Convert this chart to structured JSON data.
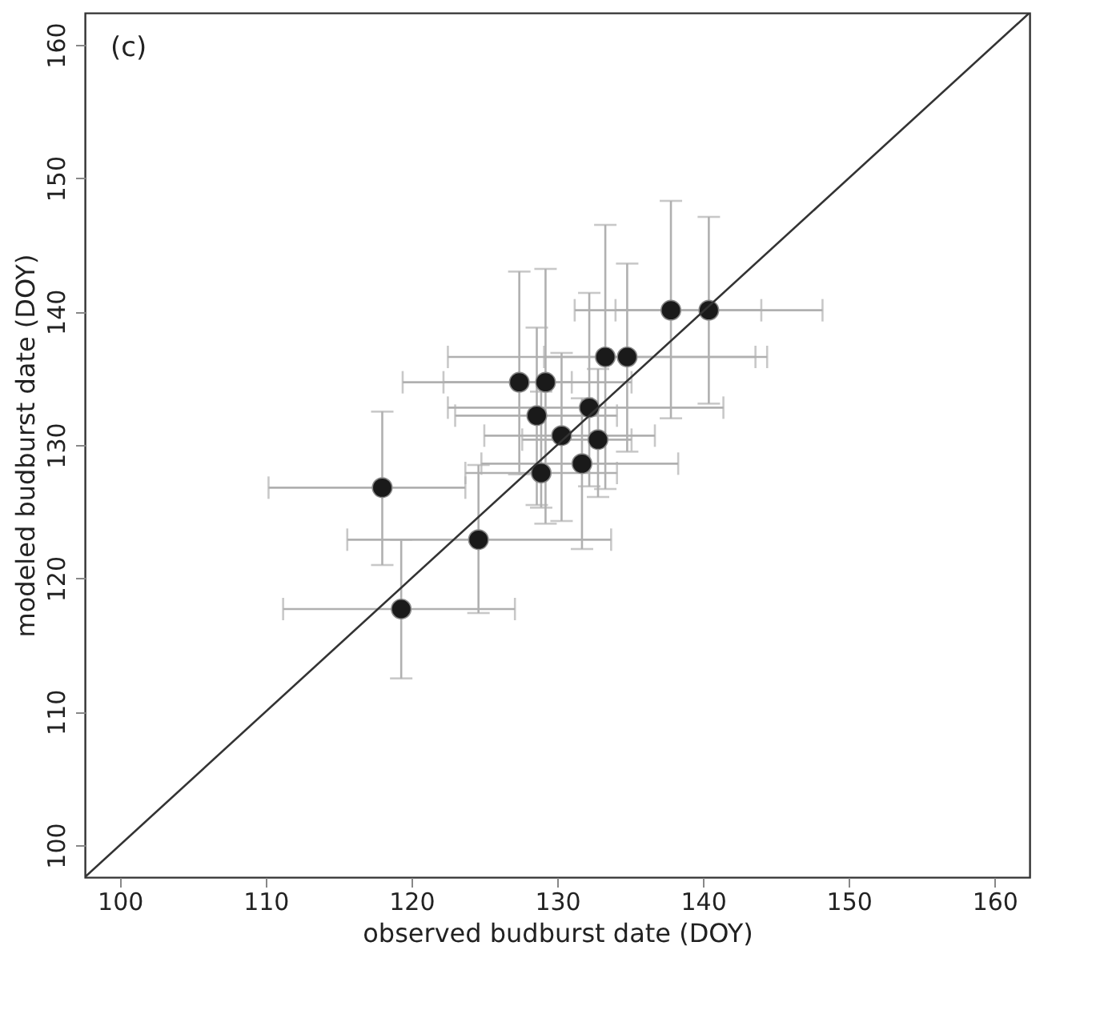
{
  "chart_data": {
    "type": "scatter",
    "xlabel": "observed budburst date (DOY)",
    "ylabel": "modeled budburst date (DOY)",
    "annotations": [
      "(c)"
    ],
    "xlim": [
      97.6,
      162.4
    ],
    "ylim": [
      97.6,
      162.4
    ],
    "xticks": [
      100,
      110,
      120,
      130,
      140,
      150,
      160
    ],
    "yticks": [
      100,
      110,
      120,
      130,
      140,
      150,
      160
    ],
    "grid": false,
    "series": [
      {
        "marker": "circle",
        "color": "#1a1a1a",
        "x": [
          118.0,
          119.3,
          124.6,
          127.4,
          129.2,
          128.6,
          130.3,
          128.9,
          131.7,
          132.2,
          132.8,
          133.3,
          134.8,
          137.8,
          140.4
        ],
        "values": [
          126.8,
          117.7,
          122.9,
          134.7,
          134.7,
          132.2,
          130.7,
          127.9,
          128.6,
          132.8,
          130.4,
          136.6,
          136.6,
          140.1,
          140.1
        ],
        "errors": [
          [
            121.0,
            132.5
          ],
          [
            112.5,
            122.9
          ],
          [
            117.4,
            128.5
          ],
          [
            127.8,
            143.0
          ],
          [
            124.1,
            143.2
          ],
          [
            125.5,
            138.8
          ],
          [
            124.3,
            136.9
          ],
          [
            125.3,
            134.0
          ],
          [
            122.2,
            133.5
          ],
          [
            126.9,
            141.4
          ],
          [
            126.1,
            135.7
          ],
          [
            126.7,
            146.5
          ],
          [
            129.5,
            143.6
          ],
          [
            132.0,
            148.3
          ],
          [
            133.1,
            147.1
          ]
        ],
        "xerrors": [
          [
            110.2,
            123.7
          ],
          [
            111.2,
            127.1
          ],
          [
            115.6,
            133.7
          ],
          [
            119.4,
            131.0
          ],
          [
            122.2,
            135.1
          ],
          [
            123.0,
            134.1
          ],
          [
            125.0,
            136.7
          ],
          [
            123.7,
            134.1
          ],
          [
            124.8,
            138.3
          ],
          [
            122.5,
            141.4
          ],
          [
            127.6,
            135.1
          ],
          [
            122.5,
            144.4
          ],
          [
            129.1,
            143.6
          ],
          [
            131.2,
            148.2
          ],
          [
            134.0,
            144.0
          ]
        ]
      },
      {
        "type": "line",
        "color": "#333333",
        "x": [
          97.6,
          162.4
        ],
        "values": [
          97.6,
          162.4
        ]
      }
    ]
  }
}
